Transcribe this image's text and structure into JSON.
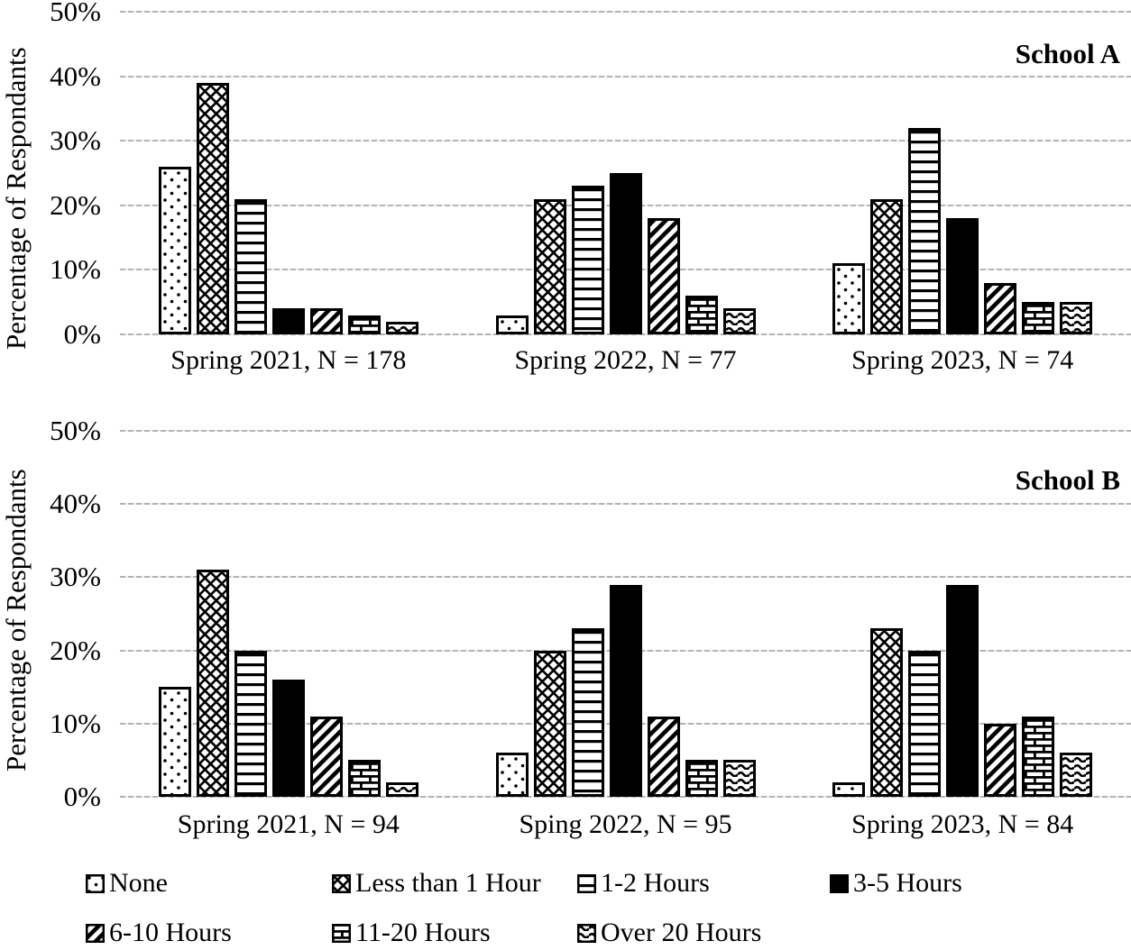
{
  "page": {
    "background": "#ffffff",
    "text_color": "#000000",
    "gridline_color": "#b3b3b3",
    "bar_fill": "#ffffff",
    "bar_stroke": "#000000"
  },
  "legend": {
    "position": "bottom",
    "items": [
      {
        "label": "None",
        "pattern": "dots"
      },
      {
        "label": "Less than 1 Hour",
        "pattern": "cross"
      },
      {
        "label": "1-2 Hours",
        "pattern": "hlines"
      },
      {
        "label": "3-5 Hours",
        "pattern": "solid"
      },
      {
        "label": "6-10 Hours",
        "pattern": "diag"
      },
      {
        "label": "11-20 Hours",
        "pattern": "brick"
      },
      {
        "label": "Over 20 Hours",
        "pattern": "wave"
      }
    ]
  },
  "chart_data": [
    {
      "type": "bar",
      "title": "School A",
      "ylabel": "Percentage of Respondants",
      "ylim": [
        0,
        50
      ],
      "grid": true,
      "yticks": [
        "0%",
        "10%",
        "20%",
        "30%",
        "40%",
        "50%"
      ],
      "categories": [
        "Spring 2021, N = 178",
        "Spring 2022, N = 77",
        "Spring 2023, N = 74"
      ],
      "series": [
        {
          "name": "None",
          "values": [
            26,
            3,
            11
          ]
        },
        {
          "name": "Less than 1 Hour",
          "values": [
            39,
            21,
            21
          ]
        },
        {
          "name": "1-2 Hours",
          "values": [
            21,
            23,
            32
          ]
        },
        {
          "name": "3-5 Hours",
          "values": [
            4,
            25,
            18
          ]
        },
        {
          "name": "6-10 Hours",
          "values": [
            4,
            18,
            8
          ]
        },
        {
          "name": "11-20 Hours",
          "values": [
            3,
            6,
            5
          ]
        },
        {
          "name": "Over 20 Hours",
          "values": [
            2,
            4,
            5
          ]
        }
      ]
    },
    {
      "type": "bar",
      "title": "School B",
      "ylabel": "Percentage of Respondants",
      "ylim": [
        0,
        50
      ],
      "grid": true,
      "yticks": [
        "0%",
        "10%",
        "20%",
        "30%",
        "40%",
        "50%"
      ],
      "categories": [
        "Spring 2021, N = 94",
        "Sping 2022, N = 95",
        "Spring 2023, N = 84"
      ],
      "series": [
        {
          "name": "None",
          "values": [
            15,
            6,
            2
          ]
        },
        {
          "name": "Less than 1 Hour",
          "values": [
            31,
            20,
            23
          ]
        },
        {
          "name": "1-2 Hours",
          "values": [
            20,
            23,
            20
          ]
        },
        {
          "name": "3-5 Hours",
          "values": [
            16,
            29,
            29
          ]
        },
        {
          "name": "6-10 Hours",
          "values": [
            11,
            11,
            10
          ]
        },
        {
          "name": "11-20 Hours",
          "values": [
            5,
            5,
            11
          ]
        },
        {
          "name": "Over 20 Hours",
          "values": [
            2,
            5,
            6
          ]
        }
      ]
    }
  ]
}
